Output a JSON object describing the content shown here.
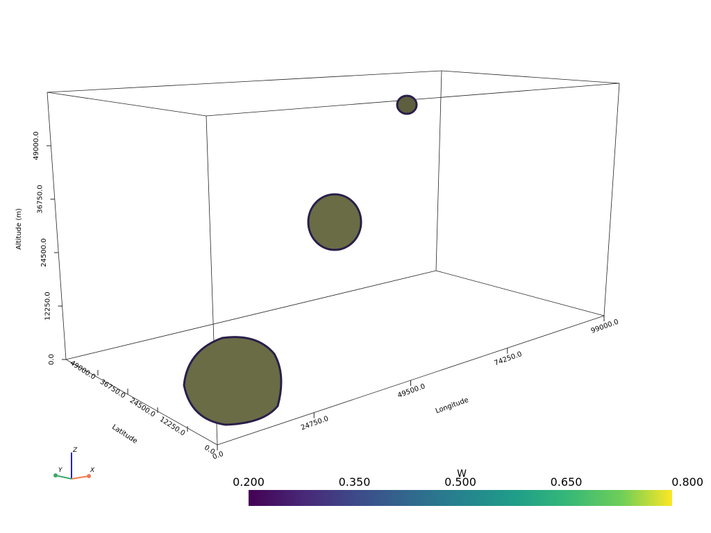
{
  "scene": {
    "z_axis": {
      "title": "Altitude (m)",
      "ticks": [
        {
          "value": 0,
          "label": "0.0"
        },
        {
          "value": 12250,
          "label": "12250.0"
        },
        {
          "value": 24500,
          "label": "24500.0"
        },
        {
          "value": 36750,
          "label": "36750.0"
        },
        {
          "value": 49000,
          "label": "49000.0"
        }
      ]
    },
    "y_axis": {
      "title": "Latitude",
      "ticks": [
        {
          "value": 0,
          "label": "0.0"
        },
        {
          "value": 12250,
          "label": "12250.0"
        },
        {
          "value": 24500,
          "label": "24500.0"
        },
        {
          "value": 36750,
          "label": "36750.0"
        },
        {
          "value": 49000,
          "label": "49000.0"
        }
      ]
    },
    "x_axis": {
      "title": "Longitude",
      "ticks": [
        {
          "value": 0,
          "label": "0.0"
        },
        {
          "value": 24750,
          "label": "24750.0"
        },
        {
          "value": 49500,
          "label": "49500.0"
        },
        {
          "value": 74250,
          "label": "74250.0"
        },
        {
          "value": 99000,
          "label": "99000.0"
        }
      ]
    }
  },
  "colorbar": {
    "title": "W",
    "range": [
      0.2,
      0.8
    ],
    "colormap": "viridis",
    "ticks": [
      {
        "value": 0.2,
        "label": "0.200"
      },
      {
        "value": 0.35,
        "label": "0.350"
      },
      {
        "value": 0.5,
        "label": "0.500"
      },
      {
        "value": 0.65,
        "label": "0.650"
      },
      {
        "value": 0.8,
        "label": "0.800"
      }
    ]
  },
  "orientation_widget": {
    "x": "X",
    "y": "Y",
    "z": "Z"
  }
}
